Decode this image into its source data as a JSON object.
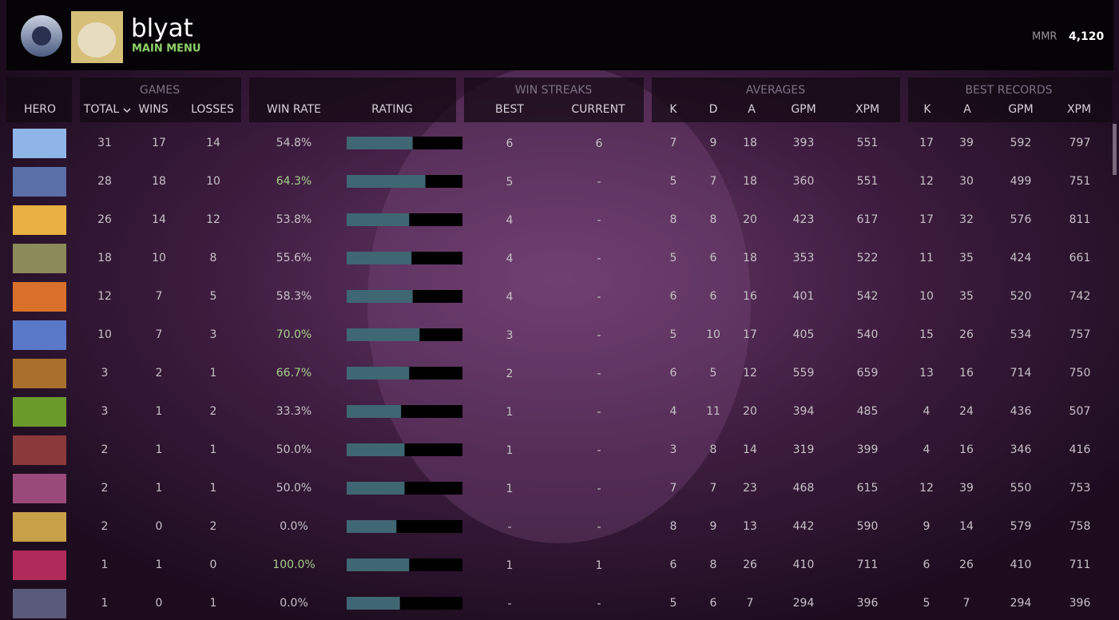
{
  "header": {
    "name": "blyat",
    "subtitle": "MAIN MENU",
    "mmr_label": "MMR",
    "mmr_value": "4,120"
  },
  "table": {
    "groups": [
      "GAMES",
      "WIN STREAKS",
      "AVERAGES",
      "BEST RECORDS"
    ],
    "columns": [
      "HERO",
      "TOTAL",
      "WINS",
      "LOSSES",
      "WIN RATE",
      "RATING",
      "BEST",
      "CURRENT",
      "K",
      "D",
      "A",
      "GPM",
      "XPM",
      "K",
      "A",
      "GPM",
      "XPM"
    ],
    "rating_scale": [
      0,
      100
    ],
    "rating_color": "#3f6673",
    "rows": [
      {
        "cells": [
          31,
          17,
          14,
          "54.8%",
          57,
          6,
          6,
          7,
          9,
          18,
          393,
          551,
          17,
          39,
          592,
          797
        ],
        "win_rate_color": "#c8c0c8"
      },
      {
        "cells": [
          28,
          18,
          10,
          "64.3%",
          68,
          5,
          "-",
          5,
          7,
          18,
          360,
          551,
          12,
          30,
          499,
          751
        ],
        "win_rate_color": "#a6cf8a"
      },
      {
        "cells": [
          26,
          14,
          12,
          "53.8%",
          54,
          4,
          "-",
          8,
          8,
          20,
          423,
          617,
          17,
          32,
          576,
          811
        ],
        "win_rate_color": "#c8c0c8"
      },
      {
        "cells": [
          18,
          10,
          8,
          "55.6%",
          56,
          4,
          "-",
          5,
          6,
          18,
          353,
          522,
          11,
          35,
          424,
          661
        ],
        "win_rate_color": "#c8c0c8"
      },
      {
        "cells": [
          12,
          7,
          5,
          "58.3%",
          57,
          4,
          "-",
          6,
          6,
          16,
          401,
          542,
          10,
          35,
          520,
          742
        ],
        "win_rate_color": "#c8c0c8"
      },
      {
        "cells": [
          10,
          7,
          3,
          "70.0%",
          63,
          3,
          "-",
          5,
          10,
          17,
          405,
          540,
          15,
          26,
          534,
          757
        ],
        "win_rate_color": "#a6cf8a"
      },
      {
        "cells": [
          3,
          2,
          1,
          "66.7%",
          54,
          2,
          "-",
          6,
          5,
          12,
          559,
          659,
          13,
          16,
          714,
          750
        ],
        "win_rate_color": "#a6cf8a"
      },
      {
        "cells": [
          3,
          1,
          2,
          "33.3%",
          47,
          1,
          "-",
          4,
          11,
          20,
          394,
          485,
          4,
          24,
          436,
          507
        ],
        "win_rate_color": "#c8c0c8"
      },
      {
        "cells": [
          2,
          1,
          1,
          "50.0%",
          50,
          1,
          "-",
          3,
          8,
          14,
          319,
          399,
          4,
          16,
          346,
          416
        ],
        "win_rate_color": "#c8c0c8"
      },
      {
        "cells": [
          2,
          1,
          1,
          "50.0%",
          50,
          1,
          "-",
          7,
          7,
          23,
          468,
          615,
          12,
          39,
          550,
          753
        ],
        "win_rate_color": "#c8c0c8"
      },
      {
        "cells": [
          2,
          0,
          2,
          "0.0%",
          43,
          "-",
          "-",
          8,
          9,
          13,
          442,
          590,
          9,
          14,
          579,
          758
        ],
        "win_rate_color": "#c8c0c8"
      },
      {
        "cells": [
          1,
          1,
          0,
          "100.0%",
          54,
          1,
          1,
          6,
          8,
          26,
          410,
          711,
          6,
          26,
          410,
          711
        ],
        "win_rate_color": "#a6cf8a"
      },
      {
        "cells": [
          1,
          0,
          1,
          "0.0%",
          46,
          "-",
          "-",
          5,
          6,
          7,
          294,
          396,
          5,
          7,
          294,
          396
        ],
        "win_rate_color": "#c8c0c8"
      }
    ]
  }
}
